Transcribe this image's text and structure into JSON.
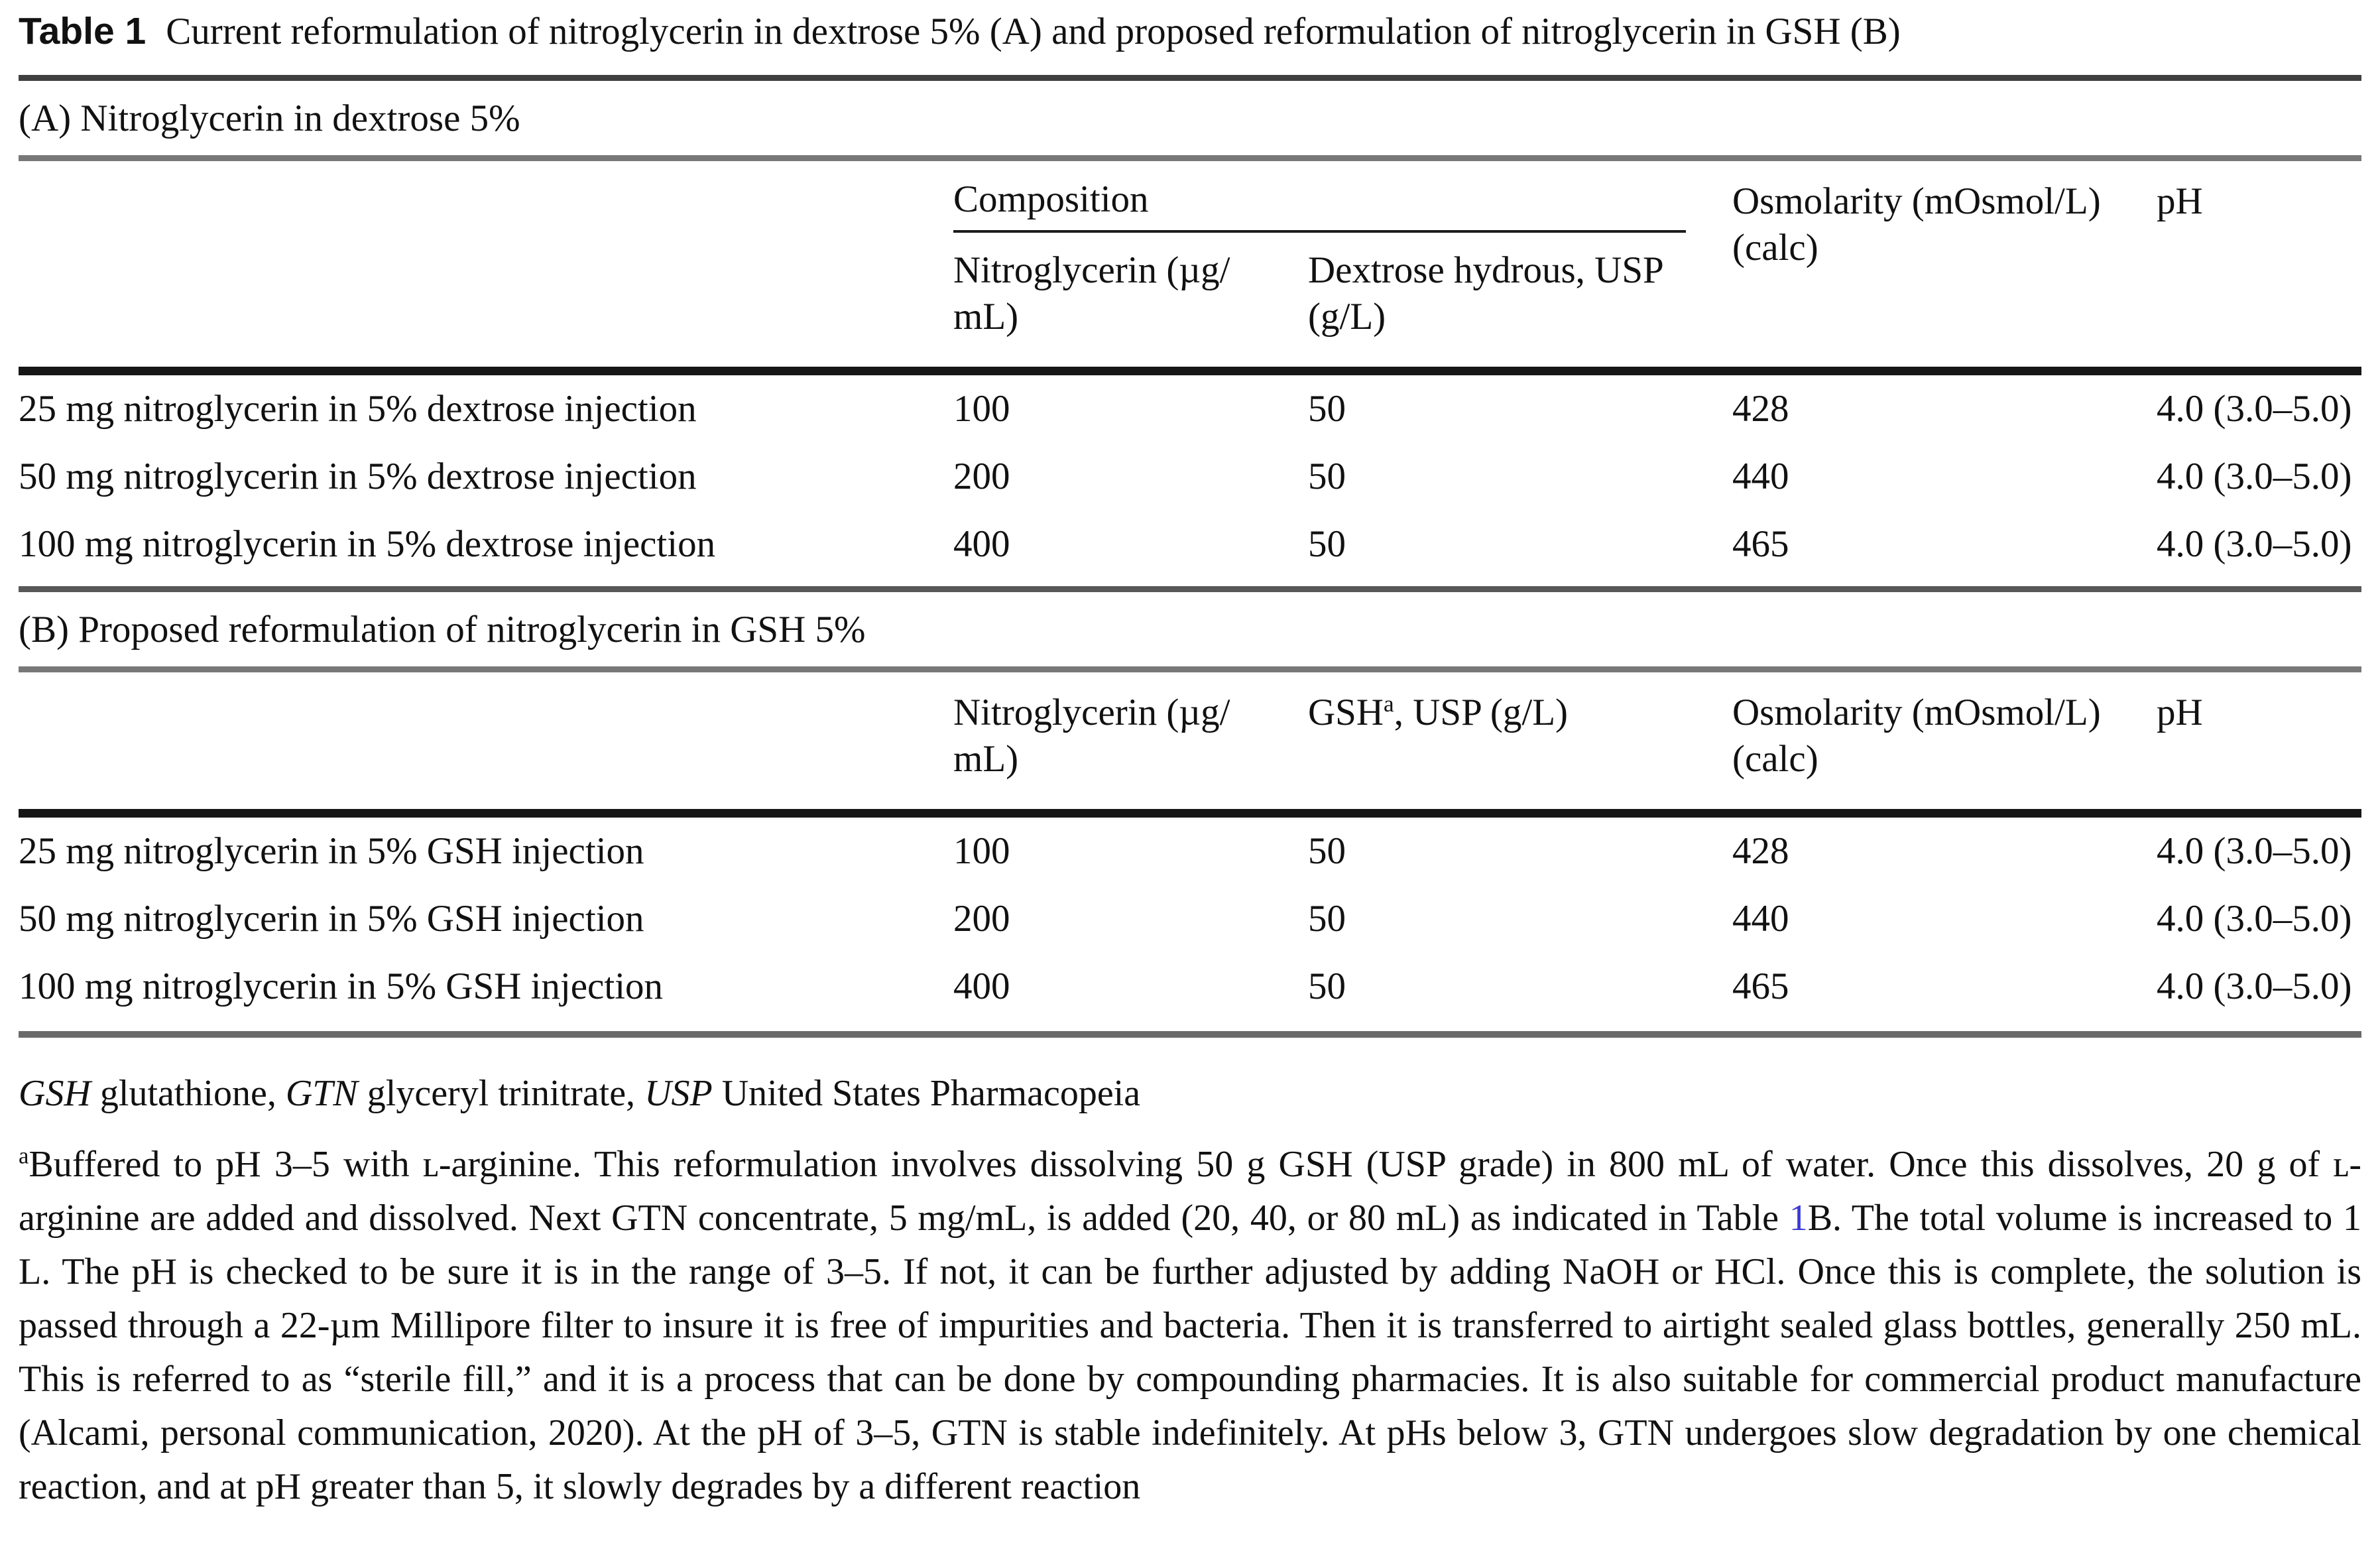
{
  "title": {
    "label": "Table 1",
    "text": "Current reformulation of nitroglycerin in dextrose 5% (A) and proposed reformulation of nitroglycerin in GSH (B)"
  },
  "colors": {
    "link_blue": "#3a3ad6",
    "text": "#111111"
  },
  "section_a": {
    "heading": "(A) Nitroglycerin in dextrose 5%",
    "composition": "Composition",
    "headers": {
      "nitro_l1": "Nitroglycerin (µg/",
      "nitro_l2": "mL)",
      "diluent_l1": "Dextrose hydrous, USP",
      "diluent_l2": "(g/L)",
      "osmo_l1": "Osmolarity (mOsmol/L)",
      "osmo_l2": "(calc)",
      "ph": "pH"
    },
    "rows": [
      {
        "label": "25 mg nitroglycerin in 5% dextrose injection",
        "nitroglycerin": "100",
        "diluent": "50",
        "osmolarity": "428",
        "ph": "4.0 (3.0–5.0)"
      },
      {
        "label": "50 mg nitroglycerin in 5% dextrose injection",
        "nitroglycerin": "200",
        "diluent": "50",
        "osmolarity": "440",
        "ph": "4.0 (3.0–5.0)"
      },
      {
        "label": "100 mg nitroglycerin in 5% dextrose injection",
        "nitroglycerin": "400",
        "diluent": "50",
        "osmolarity": "465",
        "ph": "4.0 (3.0–5.0)"
      }
    ]
  },
  "section_b": {
    "heading": "(B) Proposed reformulation of nitroglycerin in GSH 5%",
    "headers": {
      "nitro_l1": "Nitroglycerin (µg/",
      "nitro_l2": "mL)",
      "gsh_pre": "GSH",
      "gsh_sup": "a",
      "gsh_post": ", USP (g/L)",
      "osmo_l1": "Osmolarity (mOsmol/L)",
      "osmo_l2": "(calc)",
      "ph": "pH"
    },
    "rows": [
      {
        "label": "25 mg nitroglycerin in 5% GSH injection",
        "nitroglycerin": "100",
        "gsh": "50",
        "osmolarity": "428",
        "ph": "4.0 (3.0–5.0)"
      },
      {
        "label": "50 mg nitroglycerin in 5% GSH injection",
        "nitroglycerin": "200",
        "gsh": "50",
        "osmolarity": "440",
        "ph": "4.0 (3.0–5.0)"
      },
      {
        "label": "100 mg nitroglycerin in 5% GSH injection",
        "nitroglycerin": "400",
        "gsh": "50",
        "osmolarity": "465",
        "ph": "4.0 (3.0–5.0)"
      }
    ]
  },
  "footnotes": {
    "abbrev": {
      "gsh": "GSH",
      "gsh_def": " glutathione, ",
      "gtn": "GTN",
      "gtn_def": " glyceryl trinitrate, ",
      "usp": "USP",
      "usp_def": " United States Pharmacopeia"
    },
    "note_a": {
      "marker": "a",
      "part1": "Buffered to pH 3–5 with ʟ-arginine. This reformulation involves dissolving 50 g GSH (USP grade) in 800 mL of water. Once this dissolves, 20 g of ʟ-arginine are added and dissolved. Next GTN concentrate, 5 mg/mL, is added (20, 40, or 80 mL) as indicated in Table ",
      "table_link": "1",
      "part2": "B. The total volume is increased to 1 L. The pH is checked to be sure it is in the range of 3–5. If not, it can be further adjusted by adding NaOH or HCl. Once this is complete, the solution is passed through a 22-µm Millipore filter to insure it is free of impurities and bacteria. Then it is transferred to airtight sealed glass bottles, generally 250 mL. This is referred to as “sterile fill,” and it is a process that can be done by compounding pharmacies. It is also suitable for commercial product manufacture (Alcami, personal communication, 2020). At the pH of 3–5, GTN is stable indefinitely. At pHs below 3, GTN undergoes slow degradation by one chemical reaction, and at pH greater than 5, it slowly degrades by a different reaction"
    }
  }
}
